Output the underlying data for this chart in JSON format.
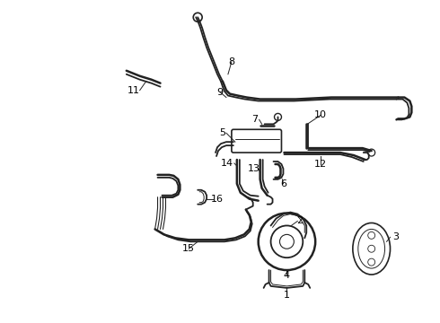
{
  "bg_color": "#ffffff",
  "line_color": "#222222",
  "label_color": "#000000",
  "fig_width": 4.9,
  "fig_height": 3.6,
  "dpi": 100,
  "lw": 1.3,
  "lw2": 1.8
}
